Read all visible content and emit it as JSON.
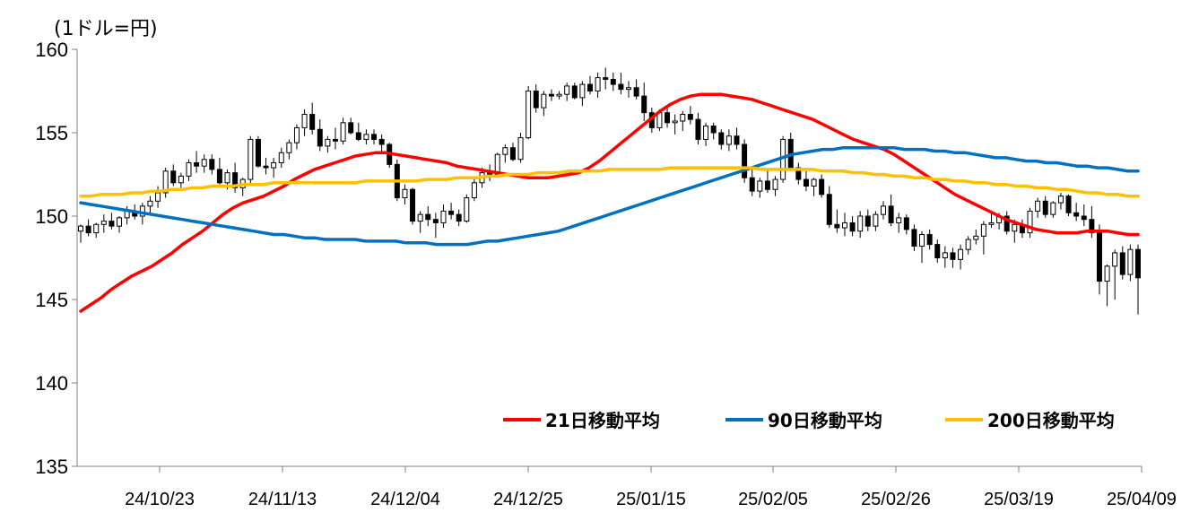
{
  "chart_data": {
    "type": "candlestick+line",
    "unit_label": "(1ドル=円)",
    "ylim": [
      135,
      160
    ],
    "yticks": [
      135,
      140,
      145,
      150,
      155,
      160
    ],
    "xtick_labels": [
      "24/10/23",
      "24/11/13",
      "24/12/04",
      "24/12/25",
      "25/01/15",
      "25/02/05",
      "25/02/26",
      "25/03/19",
      "25/04/09"
    ],
    "grid": false,
    "legend_position": "bottom-right",
    "series": [
      {
        "name": "21日移動平均",
        "color": "#FF0000",
        "values": [
          144.3,
          144.7,
          145.1,
          145.6,
          146.0,
          146.4,
          146.7,
          147.0,
          147.4,
          147.8,
          148.3,
          148.7,
          149.1,
          149.6,
          150.1,
          150.5,
          150.8,
          151.0,
          151.2,
          151.5,
          151.8,
          152.2,
          152.5,
          152.8,
          153.0,
          153.2,
          153.4,
          153.6,
          153.7,
          153.8,
          153.8,
          153.7,
          153.6,
          153.5,
          153.4,
          153.3,
          153.2,
          153.0,
          152.9,
          152.8,
          152.7,
          152.6,
          152.5,
          152.4,
          152.3,
          152.3,
          152.3,
          152.4,
          152.5,
          152.6,
          152.9,
          153.3,
          153.8,
          154.3,
          154.8,
          155.3,
          155.8,
          156.3,
          156.7,
          157.0,
          157.2,
          157.3,
          157.3,
          157.3,
          157.2,
          157.1,
          157.0,
          156.8,
          156.6,
          156.4,
          156.2,
          156.0,
          155.8,
          155.5,
          155.2,
          154.9,
          154.6,
          154.4,
          154.2,
          154.0,
          153.7,
          153.3,
          152.9,
          152.5,
          152.1,
          151.7,
          151.3,
          151.0,
          150.7,
          150.4,
          150.1,
          149.8,
          149.6,
          149.4,
          149.2,
          149.1,
          149.0,
          149.0,
          149.0,
          149.1,
          149.1,
          149.1,
          149.0,
          148.9,
          148.9
        ]
      },
      {
        "name": "90日移動平均",
        "color": "#0070C0",
        "values": [
          150.8,
          150.7,
          150.6,
          150.5,
          150.4,
          150.3,
          150.2,
          150.1,
          150.0,
          149.9,
          149.8,
          149.7,
          149.6,
          149.5,
          149.4,
          149.3,
          149.2,
          149.1,
          149.0,
          148.9,
          148.9,
          148.8,
          148.7,
          148.7,
          148.6,
          148.6,
          148.6,
          148.6,
          148.5,
          148.5,
          148.5,
          148.5,
          148.4,
          148.4,
          148.4,
          148.3,
          148.3,
          148.3,
          148.3,
          148.4,
          148.5,
          148.5,
          148.6,
          148.7,
          148.8,
          148.9,
          149.0,
          149.1,
          149.3,
          149.5,
          149.7,
          149.9,
          150.1,
          150.3,
          150.5,
          150.7,
          150.9,
          151.1,
          151.3,
          151.5,
          151.7,
          151.9,
          152.1,
          152.3,
          152.5,
          152.7,
          152.9,
          153.1,
          153.3,
          153.5,
          153.7,
          153.8,
          153.9,
          154.0,
          154.0,
          154.1,
          154.1,
          154.1,
          154.1,
          154.1,
          154.1,
          154.0,
          154.0,
          154.0,
          153.9,
          153.9,
          153.8,
          153.8,
          153.7,
          153.6,
          153.5,
          153.5,
          153.4,
          153.3,
          153.3,
          153.2,
          153.2,
          153.1,
          153.0,
          153.0,
          152.9,
          152.9,
          152.8,
          152.7,
          152.7
        ]
      },
      {
        "name": "200日移動平均",
        "color": "#FFC000",
        "values": [
          151.2,
          151.2,
          151.3,
          151.3,
          151.3,
          151.4,
          151.4,
          151.5,
          151.5,
          151.6,
          151.6,
          151.7,
          151.7,
          151.8,
          151.8,
          151.8,
          151.9,
          151.9,
          151.9,
          152.0,
          152.0,
          152.0,
          152.0,
          152.0,
          152.0,
          152.0,
          152.0,
          152.0,
          152.1,
          152.1,
          152.1,
          152.1,
          152.1,
          152.1,
          152.2,
          152.2,
          152.2,
          152.3,
          152.3,
          152.3,
          152.4,
          152.4,
          152.5,
          152.5,
          152.5,
          152.6,
          152.6,
          152.6,
          152.7,
          152.7,
          152.7,
          152.7,
          152.8,
          152.8,
          152.8,
          152.8,
          152.8,
          152.8,
          152.9,
          152.9,
          152.9,
          152.9,
          152.9,
          152.9,
          152.9,
          152.9,
          152.9,
          152.8,
          152.8,
          152.8,
          152.8,
          152.8,
          152.8,
          152.7,
          152.7,
          152.7,
          152.6,
          152.6,
          152.5,
          152.5,
          152.4,
          152.4,
          152.3,
          152.3,
          152.2,
          152.2,
          152.1,
          152.1,
          152.0,
          152.0,
          151.9,
          151.9,
          151.8,
          151.8,
          151.7,
          151.7,
          151.6,
          151.6,
          151.5,
          151.4,
          151.4,
          151.3,
          151.3,
          151.2,
          151.2
        ]
      }
    ],
    "candles_ohlc": [
      [
        149.1,
        149.5,
        148.4,
        149.4
      ],
      [
        149.4,
        149.8,
        148.8,
        149.0
      ],
      [
        149.0,
        149.6,
        148.7,
        149.5
      ],
      [
        149.5,
        150.1,
        149.0,
        149.7
      ],
      [
        149.7,
        150.2,
        149.2,
        149.4
      ],
      [
        149.4,
        150.0,
        149.0,
        149.9
      ],
      [
        149.9,
        150.6,
        149.5,
        150.3
      ],
      [
        150.3,
        150.7,
        149.8,
        150.0
      ],
      [
        150.0,
        150.8,
        149.5,
        150.6
      ],
      [
        150.6,
        151.2,
        150.1,
        150.9
      ],
      [
        150.9,
        151.8,
        150.5,
        151.4
      ],
      [
        151.4,
        152.9,
        151.1,
        152.7
      ],
      [
        152.7,
        153.1,
        151.8,
        152.0
      ],
      [
        152.0,
        152.6,
        151.7,
        152.4
      ],
      [
        152.4,
        153.4,
        152.1,
        153.2
      ],
      [
        153.2,
        153.9,
        152.6,
        153.0
      ],
      [
        153.0,
        153.7,
        152.6,
        153.4
      ],
      [
        153.4,
        153.7,
        152.5,
        152.8
      ],
      [
        152.8,
        153.5,
        151.9,
        152.0
      ],
      [
        152.0,
        152.8,
        151.6,
        152.6
      ],
      [
        152.6,
        153.2,
        151.4,
        151.7
      ],
      [
        151.7,
        152.3,
        151.2,
        152.2
      ],
      [
        152.2,
        154.8,
        151.9,
        154.6
      ],
      [
        154.6,
        154.8,
        152.9,
        153.0
      ],
      [
        153.0,
        153.5,
        152.5,
        152.9
      ],
      [
        152.9,
        153.5,
        152.3,
        153.2
      ],
      [
        153.2,
        154.1,
        152.9,
        153.8
      ],
      [
        153.8,
        154.6,
        153.4,
        154.4
      ],
      [
        154.4,
        155.5,
        154.0,
        155.3
      ],
      [
        155.3,
        156.4,
        154.8,
        156.1
      ],
      [
        156.1,
        156.8,
        154.9,
        155.2
      ],
      [
        155.2,
        155.8,
        153.9,
        154.2
      ],
      [
        154.2,
        154.8,
        153.8,
        154.6
      ],
      [
        154.6,
        155.3,
        154.0,
        154.5
      ],
      [
        154.5,
        155.9,
        154.3,
        155.6
      ],
      [
        155.6,
        155.9,
        154.9,
        155.0
      ],
      [
        155.0,
        155.6,
        154.5,
        154.6
      ],
      [
        154.6,
        155.2,
        154.3,
        154.9
      ],
      [
        154.9,
        155.2,
        154.3,
        154.6
      ],
      [
        154.6,
        154.9,
        153.9,
        154.3
      ],
      [
        154.3,
        154.4,
        152.9,
        153.1
      ],
      [
        153.1,
        153.4,
        150.9,
        151.1
      ],
      [
        151.1,
        151.9,
        150.7,
        151.6
      ],
      [
        151.6,
        151.7,
        149.5,
        149.7
      ],
      [
        149.7,
        150.3,
        149.0,
        150.1
      ],
      [
        150.1,
        150.6,
        149.4,
        149.8
      ],
      [
        149.8,
        150.2,
        148.7,
        149.6
      ],
      [
        149.6,
        150.7,
        149.3,
        150.3
      ],
      [
        150.3,
        150.8,
        149.8,
        150.1
      ],
      [
        150.1,
        150.4,
        149.4,
        149.7
      ],
      [
        149.7,
        151.3,
        149.6,
        151.1
      ],
      [
        151.1,
        152.3,
        150.9,
        152.0
      ],
      [
        152.0,
        152.9,
        151.7,
        152.6
      ],
      [
        152.6,
        153.1,
        152.1,
        152.5
      ],
      [
        152.5,
        153.8,
        152.3,
        153.7
      ],
      [
        153.7,
        154.3,
        153.2,
        154.1
      ],
      [
        154.1,
        154.4,
        153.3,
        153.4
      ],
      [
        153.4,
        155.0,
        153.2,
        154.7
      ],
      [
        154.7,
        157.8,
        154.6,
        157.5
      ],
      [
        157.5,
        157.9,
        156.2,
        156.5
      ],
      [
        156.5,
        157.5,
        156.0,
        157.3
      ],
      [
        157.3,
        157.6,
        156.9,
        157.2
      ],
      [
        157.2,
        157.5,
        157.0,
        157.3
      ],
      [
        157.3,
        158.0,
        156.9,
        157.8
      ],
      [
        157.8,
        158.0,
        157.0,
        157.1
      ],
      [
        157.1,
        158.1,
        156.6,
        157.9
      ],
      [
        157.9,
        158.4,
        157.3,
        157.5
      ],
      [
        157.5,
        158.6,
        157.1,
        158.3
      ],
      [
        158.3,
        158.9,
        157.6,
        158.2
      ],
      [
        158.2,
        158.6,
        157.5,
        157.9
      ],
      [
        157.9,
        158.6,
        157.3,
        157.6
      ],
      [
        157.6,
        158.1,
        157.1,
        157.7
      ],
      [
        157.7,
        158.2,
        157.0,
        157.2
      ],
      [
        157.2,
        158.0,
        155.7,
        156.2
      ],
      [
        156.2,
        156.5,
        155.0,
        155.3
      ],
      [
        155.3,
        156.4,
        155.1,
        156.2
      ],
      [
        156.2,
        156.6,
        155.3,
        155.6
      ],
      [
        155.6,
        156.1,
        154.9,
        155.7
      ],
      [
        155.7,
        156.3,
        155.1,
        156.1
      ],
      [
        156.1,
        156.6,
        155.5,
        155.8
      ],
      [
        155.8,
        156.2,
        154.3,
        154.6
      ],
      [
        154.6,
        155.6,
        154.2,
        155.4
      ],
      [
        155.4,
        155.6,
        154.6,
        155.0
      ],
      [
        155.0,
        155.2,
        154.0,
        154.3
      ],
      [
        154.3,
        155.2,
        153.9,
        154.8
      ],
      [
        154.8,
        155.3,
        154.0,
        154.3
      ],
      [
        154.3,
        154.6,
        152.0,
        152.3
      ],
      [
        152.3,
        153.0,
        151.2,
        151.5
      ],
      [
        151.5,
        152.3,
        151.1,
        152.1
      ],
      [
        152.1,
        152.8,
        151.4,
        151.6
      ],
      [
        151.6,
        152.4,
        151.2,
        152.2
      ],
      [
        152.2,
        154.8,
        152.0,
        154.6
      ],
      [
        154.6,
        155.0,
        152.7,
        152.9
      ],
      [
        152.9,
        153.2,
        151.9,
        152.2
      ],
      [
        152.2,
        152.7,
        151.5,
        151.8
      ],
      [
        151.8,
        152.3,
        151.2,
        152.2
      ],
      [
        152.2,
        152.5,
        151.1,
        151.3
      ],
      [
        151.3,
        151.8,
        149.3,
        149.5
      ],
      [
        149.5,
        150.4,
        149.0,
        149.3
      ],
      [
        149.3,
        150.2,
        148.8,
        149.6
      ],
      [
        149.6,
        150.0,
        148.8,
        149.1
      ],
      [
        149.1,
        150.3,
        148.7,
        150.0
      ],
      [
        150.0,
        150.4,
        149.1,
        149.4
      ],
      [
        149.4,
        150.3,
        149.1,
        150.1
      ],
      [
        150.1,
        150.9,
        149.8,
        150.6
      ],
      [
        150.6,
        151.3,
        149.4,
        149.6
      ],
      [
        149.6,
        150.2,
        149.0,
        149.9
      ],
      [
        149.9,
        150.1,
        148.9,
        149.2
      ],
      [
        149.2,
        149.5,
        147.9,
        148.2
      ],
      [
        148.2,
        149.1,
        147.2,
        148.9
      ],
      [
        148.9,
        149.2,
        148.0,
        148.3
      ],
      [
        148.3,
        148.6,
        147.2,
        147.5
      ],
      [
        147.5,
        148.2,
        146.9,
        147.8
      ],
      [
        147.8,
        148.1,
        146.9,
        147.4
      ],
      [
        147.4,
        148.3,
        146.8,
        148.0
      ],
      [
        148.0,
        148.8,
        147.7,
        148.6
      ],
      [
        148.6,
        149.2,
        148.3,
        148.8
      ],
      [
        148.8,
        149.7,
        147.7,
        149.5
      ],
      [
        149.5,
        150.3,
        149.3,
        149.6
      ],
      [
        149.6,
        150.2,
        149.2,
        150.0
      ],
      [
        150.0,
        150.3,
        148.9,
        149.1
      ],
      [
        149.1,
        149.8,
        148.4,
        149.5
      ],
      [
        149.5,
        149.8,
        148.7,
        149.0
      ],
      [
        149.0,
        150.5,
        148.7,
        150.3
      ],
      [
        150.3,
        151.1,
        149.9,
        150.9
      ],
      [
        150.9,
        151.2,
        149.9,
        150.1
      ],
      [
        150.1,
        150.9,
        149.9,
        150.8
      ],
      [
        150.8,
        151.4,
        150.4,
        151.2
      ],
      [
        151.2,
        151.3,
        150.0,
        150.2
      ],
      [
        150.2,
        150.8,
        149.7,
        150.0
      ],
      [
        150.0,
        150.7,
        149.4,
        149.8
      ],
      [
        149.8,
        150.6,
        148.7,
        149.0
      ],
      [
        149.0,
        149.5,
        145.3,
        146.1
      ],
      [
        146.1,
        147.1,
        144.6,
        147.0
      ],
      [
        147.0,
        148.0,
        145.0,
        147.8
      ],
      [
        147.8,
        148.2,
        146.2,
        146.5
      ],
      [
        146.5,
        148.3,
        146.1,
        148.0
      ],
      [
        148.0,
        148.3,
        144.1,
        146.3
      ]
    ]
  },
  "legend": {
    "label_21": "21日移動平均",
    "label_90": "90日移動平均",
    "label_200": "200日移動平均"
  },
  "unit": "(1ドル=円)"
}
